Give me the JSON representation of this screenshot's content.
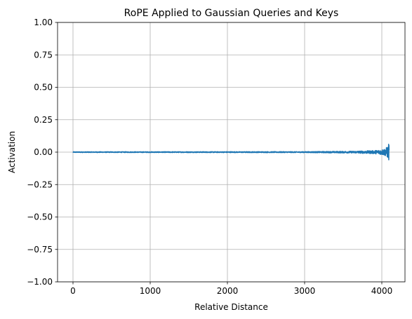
{
  "chart_data": {
    "type": "line",
    "title": "RoPE Applied to Gaussian Queries and Keys",
    "xlabel": "Relative Distance",
    "ylabel": "Activation",
    "xlim": [
      -200,
      4300
    ],
    "ylim": [
      -1.0,
      1.0
    ],
    "x_ticks": [
      0,
      1000,
      2000,
      3000,
      4000
    ],
    "x_tick_labels": [
      "0",
      "1000",
      "2000",
      "3000",
      "4000"
    ],
    "y_ticks": [
      1.0,
      0.75,
      0.5,
      0.25,
      0.0,
      -0.25,
      -0.5,
      -0.75,
      -1.0
    ],
    "y_tick_labels": [
      "1.00",
      "0.75",
      "0.50",
      "0.25",
      "0.00",
      "−0.25",
      "−0.50",
      "−0.75",
      "−1.00"
    ],
    "grid": true,
    "series": [
      {
        "color": "#1f77b4",
        "x_range": [
          0,
          4095
        ],
        "baseline": 0.0,
        "noise_envelope": [
          [
            0,
            0.003
          ],
          [
            3000,
            0.004
          ],
          [
            3600,
            0.007
          ],
          [
            3900,
            0.012
          ],
          [
            4000,
            0.02
          ],
          [
            4050,
            0.03
          ],
          [
            4080,
            0.05
          ],
          [
            4095,
            0.08
          ]
        ]
      }
    ]
  }
}
